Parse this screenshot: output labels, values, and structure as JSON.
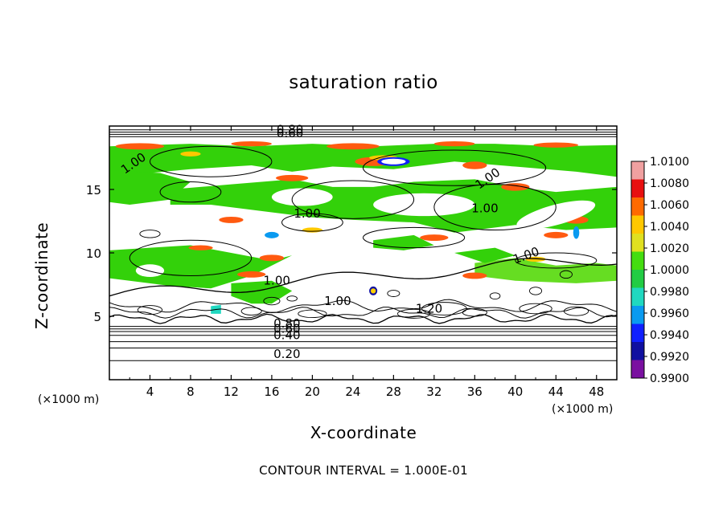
{
  "chart_data": {
    "type": "heatmap",
    "title": "saturation ratio",
    "xlabel": "X-coordinate",
    "ylabel": "Z-coordinate",
    "x_unit_label": "(×1000 m)",
    "xlim": [
      0,
      50
    ],
    "ylim": [
      0,
      20
    ],
    "x_ticks": [
      "4",
      "8",
      "12",
      "16",
      "20",
      "24",
      "28",
      "32",
      "36",
      "40",
      "44",
      "48"
    ],
    "y_ticks": [
      "5",
      "10",
      "15"
    ],
    "colorbar": {
      "levels": [
        "1.0100",
        "1.0080",
        "1.0060",
        "1.0040",
        "1.0020",
        "1.0000",
        "0.9980",
        "0.9960",
        "0.9940",
        "0.9920",
        "0.9900"
      ],
      "colors": [
        "#f0a0a0",
        "#e81010",
        "#ff6a00",
        "#ffc800",
        "#e0e020",
        "#44dd10",
        "#22cc44",
        "#20d8c0",
        "#0a9af0",
        "#1020ff",
        "#1010a0",
        "#7a10a0"
      ]
    },
    "contour_labels": [
      "0.80",
      "0.60",
      "1.00",
      "1.00",
      "1.00",
      "1.00",
      "1.00",
      "1.00",
      "1.00",
      "1.20",
      "0.80",
      "0.60",
      "0.40",
      "0.20"
    ],
    "footnote": "CONTOUR INTERVAL = 1.000E-01"
  }
}
